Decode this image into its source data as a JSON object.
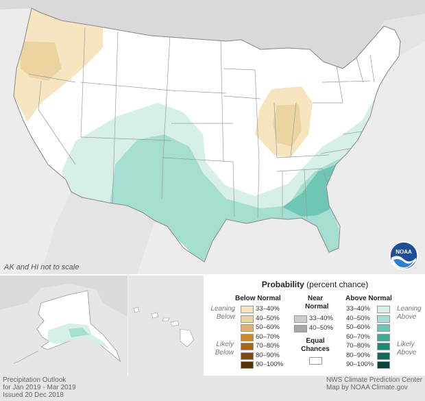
{
  "map": {
    "scale_note": "AK and HI not to scale",
    "logo_text": "NOAA"
  },
  "legend": {
    "title_bold": "Probability",
    "title_rest": " (percent chance)",
    "below_header": "Below Normal",
    "near_header_line1": "Near",
    "near_header_line2": "Normal",
    "above_header": "Above Normal",
    "leaning_below_1": "Leaning",
    "leaning_below_2": "Below",
    "likely_below_1": "Likely",
    "likely_below_2": "Below",
    "leaning_above_1": "Leaning",
    "leaning_above_2": "Above",
    "likely_above_1": "Likely",
    "likely_above_2": "Above",
    "equal_1": "Equal",
    "equal_2": "Chances",
    "below": [
      {
        "label": "33–40%",
        "color": "#f5e4bd"
      },
      {
        "label": "40–50%",
        "color": "#ecd4a1"
      },
      {
        "label": "50–60%",
        "color": "#dfb36c"
      },
      {
        "label": "60–70%",
        "color": "#c98a2c"
      },
      {
        "label": "70–80%",
        "color": "#a8671a"
      },
      {
        "label": "80–90%",
        "color": "#7f4a10"
      },
      {
        "label": "90–100%",
        "color": "#573206"
      }
    ],
    "near": [
      {
        "label": "33–40%",
        "color": "#cccccc"
      },
      {
        "label": "40–50%",
        "color": "#a6a6a6"
      }
    ],
    "above": [
      {
        "label": "33–40%",
        "color": "#d6efe9"
      },
      {
        "label": "40–50%",
        "color": "#a6ddd1"
      },
      {
        "label": "50–60%",
        "color": "#6fc6b4"
      },
      {
        "label": "60–70%",
        "color": "#3ea894"
      },
      {
        "label": "70–80%",
        "color": "#1f8975"
      },
      {
        "label": "80–90%",
        "color": "#0f6a58"
      },
      {
        "label": "90–100%",
        "color": "#06463a"
      }
    ],
    "equal_color": "#ffffff"
  },
  "footer": {
    "left_1": "Precipitation Outlook",
    "left_2": "for Jan 2019 - Mar 2019",
    "left_3": "Issued 20 Dec 2018",
    "right_1": "NWS Climate Prediction Center",
    "right_2": "Map by NOAA Climate.gov"
  }
}
